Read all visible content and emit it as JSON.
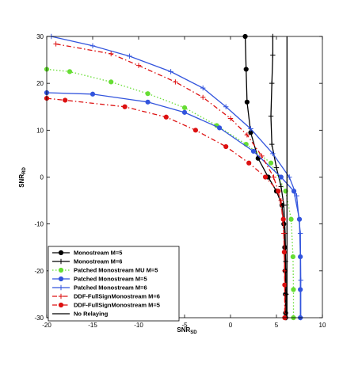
{
  "chart_data": {
    "type": "line",
    "xlabel_main": "SNR",
    "xlabel_sub": "SD",
    "ylabel_main": "SNR",
    "ylabel_sub": "RD",
    "xlim": [
      -20,
      10
    ],
    "ylim": [
      -30,
      30
    ],
    "xticks": [
      -20,
      -15,
      -10,
      -5,
      0,
      5,
      10
    ],
    "yticks": [
      -30,
      -20,
      -10,
      0,
      10,
      20,
      30
    ],
    "grid": false,
    "legend_position": "lower-left",
    "series": [
      {
        "name": "Monostream M=5",
        "color": "#000000",
        "dash": "solid",
        "marker": "dot",
        "x": [
          1.6,
          1.7,
          1.8,
          2.2,
          3.0,
          4.1,
          5.0,
          5.6,
          5.8,
          5.9,
          5.95,
          5.98,
          6.0,
          6.0
        ],
        "y": [
          30,
          23,
          16,
          9.5,
          4,
          0,
          -3,
          -6,
          -10,
          -15,
          -20,
          -25,
          -29,
          -30
        ]
      },
      {
        "name": "Monostream M=6",
        "color": "#000000",
        "dash": "solid",
        "marker": "plus",
        "x": [
          4.6,
          4.6,
          4.5,
          4.4,
          4.5,
          5.0,
          5.5,
          5.8,
          5.95,
          6.0,
          6.05,
          6.05
        ],
        "y": [
          30,
          26,
          20,
          13,
          7,
          2,
          -2,
          -6,
          -12,
          -18,
          -25,
          -30
        ]
      },
      {
        "name": "Patched Monostream MU M=5",
        "color": "#66dd33",
        "dash": "dotted",
        "marker": "dot",
        "x": [
          -20,
          -17.5,
          -13,
          -9,
          -5,
          -1.5,
          1.7,
          4.4,
          6.0,
          6.6,
          6.8,
          6.85,
          6.85
        ],
        "y": [
          23,
          22.5,
          20.3,
          17.8,
          14.8,
          11,
          7,
          3,
          -3,
          -9,
          -17,
          -24,
          -30
        ]
      },
      {
        "name": "Patched Monostream M=5",
        "color": "#3355dd",
        "dash": "solid",
        "marker": "dot",
        "x": [
          -20,
          -15,
          -9,
          -5,
          -1.2,
          2.5,
          5.5,
          6.9,
          7.5,
          7.6,
          7.6,
          7.6
        ],
        "y": [
          18,
          17.7,
          16,
          13.8,
          10.5,
          5.5,
          0,
          -3,
          -9,
          -17,
          -24,
          -30
        ]
      },
      {
        "name": "Patched Monostream M=6",
        "color": "#3355dd",
        "dash": "solid",
        "marker": "plus",
        "x": [
          -19.5,
          -15,
          -11,
          -6.5,
          -3,
          -0.5,
          2.2,
          4.6,
          6.4,
          7.2,
          7.6,
          7.65,
          7.65
        ],
        "y": [
          30,
          28,
          25.8,
          22.5,
          19,
          15,
          10.3,
          5,
          0,
          -4,
          -12,
          -22,
          -30
        ]
      },
      {
        "name": "DDF-FullSignMonostream M=6",
        "color": "#dd1111",
        "dash": "dashdot",
        "marker": "plus",
        "x": [
          -19,
          -13,
          -10,
          -6,
          -3,
          0,
          1.8,
          3.4,
          4.7,
          5.5,
          5.8,
          5.9,
          5.95
        ],
        "y": [
          28.4,
          26.3,
          23.8,
          20.3,
          17,
          12.5,
          9,
          4.5,
          0,
          -5,
          -12,
          -20,
          -30
        ]
      },
      {
        "name": "DDF-FullSignMonostream M=5",
        "color": "#dd1111",
        "dash": "dashdot",
        "marker": "dot",
        "x": [
          -20,
          -18,
          -11.5,
          -7,
          -3.8,
          -0.5,
          2.0,
          3.8,
          5.2,
          5.75,
          5.85,
          5.9,
          5.9
        ],
        "y": [
          16.8,
          16.4,
          15,
          12.8,
          10,
          6.5,
          3,
          0,
          -3,
          -9,
          -16,
          -23,
          -30
        ]
      },
      {
        "name": "No Relaying",
        "color": "#000000",
        "dash": "solid",
        "marker": "none",
        "x": [
          6.15,
          6.15
        ],
        "y": [
          30,
          -30
        ]
      }
    ]
  }
}
